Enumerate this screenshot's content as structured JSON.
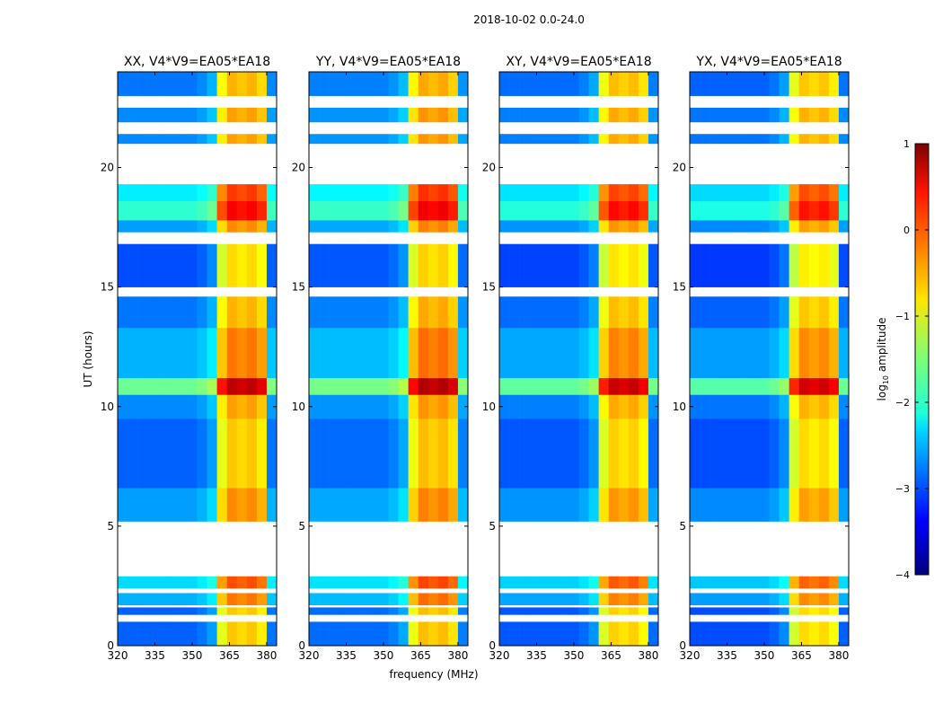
{
  "chart_data": {
    "type": "heatmap",
    "suptitle": "2018-10-02 0.0-24.0",
    "xlabel": "frequency (MHz)",
    "ylabel": "UT (hours)",
    "xlim": [
      320,
      384
    ],
    "ylim": [
      0,
      24
    ],
    "xticks": [
      320,
      335,
      350,
      365,
      380
    ],
    "yticks": [
      0,
      5,
      10,
      15,
      20
    ],
    "colorbar": {
      "label_prefix": "log",
      "label_sub": "10",
      "label_suffix": " amplitude",
      "range": [
        -4,
        1
      ],
      "ticks": [
        1,
        0,
        -1,
        -2,
        -3,
        -4
      ],
      "colormap": "jet"
    },
    "freq_columns_mhz": [
      320,
      324,
      328,
      332,
      336,
      340,
      344,
      348,
      352,
      356,
      360,
      364,
      368,
      372,
      376,
      380
    ],
    "freq_step_mhz": 4,
    "base_log_amplitude": [
      -2.9,
      -2.9,
      -2.9,
      -2.9,
      -2.9,
      -2.9,
      -2.9,
      -2.9,
      -2.8,
      -2.6,
      -1.0,
      -0.6,
      -0.7,
      -0.6,
      -0.8,
      -2.8
    ],
    "time_segments": [
      {
        "start": 0.0,
        "end": 1.0,
        "offset": 0.0
      },
      {
        "start": 1.0,
        "end": 1.3,
        "offset": null
      },
      {
        "start": 1.3,
        "end": 1.6,
        "offset": 0.0
      },
      {
        "start": 1.6,
        "end": 1.7,
        "offset": null
      },
      {
        "start": 1.7,
        "end": 2.2,
        "offset": 0.4
      },
      {
        "start": 2.2,
        "end": 2.4,
        "offset": null
      },
      {
        "start": 2.4,
        "end": 2.9,
        "offset": 0.6
      },
      {
        "start": 2.9,
        "end": 5.2,
        "offset": null
      },
      {
        "start": 5.2,
        "end": 6.6,
        "offset": 0.3
      },
      {
        "start": 6.6,
        "end": 9.5,
        "offset": 0.0
      },
      {
        "start": 9.5,
        "end": 9.7,
        "offset": 0.2
      },
      {
        "start": 9.7,
        "end": 10.5,
        "offset": 0.2
      },
      {
        "start": 10.5,
        "end": 11.2,
        "offset": 1.3
      },
      {
        "start": 11.2,
        "end": 13.3,
        "offset": 0.4
      },
      {
        "start": 13.3,
        "end": 14.6,
        "offset": 0.1
      },
      {
        "start": 14.6,
        "end": 15.0,
        "offset": null
      },
      {
        "start": 15.0,
        "end": 16.8,
        "offset": -0.1
      },
      {
        "start": 16.8,
        "end": 17.3,
        "offset": null
      },
      {
        "start": 17.3,
        "end": 17.8,
        "offset": 0.3
      },
      {
        "start": 17.8,
        "end": 18.6,
        "offset": 1.0
      },
      {
        "start": 18.6,
        "end": 19.3,
        "offset": 0.7
      },
      {
        "start": 19.3,
        "end": 21.0,
        "offset": null
      },
      {
        "start": 21.0,
        "end": 21.4,
        "offset": 0.2
      },
      {
        "start": 21.4,
        "end": 21.9,
        "offset": null
      },
      {
        "start": 21.9,
        "end": 22.5,
        "offset": 0.2
      },
      {
        "start": 22.5,
        "end": 23.0,
        "offset": null
      },
      {
        "start": 23.0,
        "end": 24.0,
        "offset": 0.1
      }
    ],
    "panels": [
      {
        "title": "XX, V4*V9=EA05*EA18",
        "offset": 0.0
      },
      {
        "title": "YY, V4*V9=EA05*EA18",
        "offset": 0.05
      },
      {
        "title": "XY, V4*V9=EA05*EA18",
        "offset": -0.05
      },
      {
        "title": "YX, V4*V9=EA05*EA18",
        "offset": -0.1
      }
    ]
  }
}
